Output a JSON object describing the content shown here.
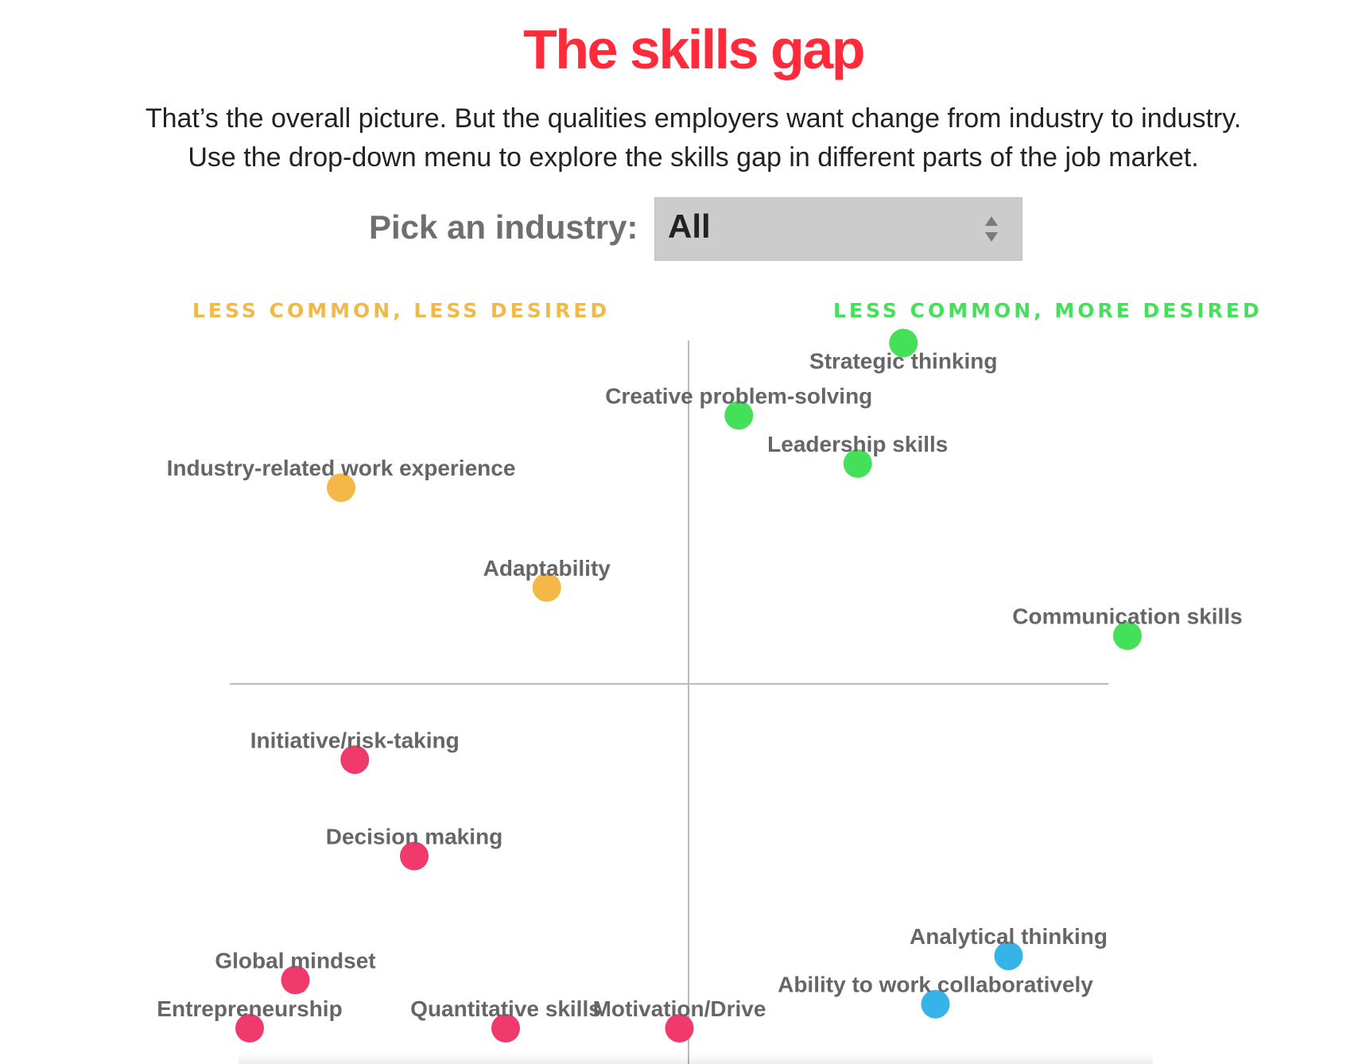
{
  "title": "The skills gap",
  "intro": {
    "line1": "That’s the overall picture. But the qualities employers want change from industry to industry.",
    "line2": "Use the drop-down menu to explore the skills gap in different parts of the job market."
  },
  "picker": {
    "label": "Pick an industry:",
    "value": "All"
  },
  "quadrant_labels": {
    "top_left": "LESS COMMON, LESS DESIRED",
    "top_right": "LESS COMMON, MORE DESIRED"
  },
  "colors": {
    "title": "#ff2a3a",
    "top_left": "#f3b847",
    "top_right": "#45e05a",
    "bottom_left": "#f13a6c",
    "bottom_right": "#35b4ea",
    "axis": "#bbbbbb",
    "point_label": "#666666"
  },
  "chart_data": {
    "type": "scatter",
    "x_range": [
      -1,
      1
    ],
    "y_range": [
      -1,
      1
    ],
    "axes": "crosshair",
    "grid": false,
    "legend": "none",
    "points": [
      {
        "label": "Strategic thinking",
        "x": 0.47,
        "y": 0.99,
        "group": "top_right",
        "label_position": "below"
      },
      {
        "label": "Creative problem-solving",
        "x": 0.11,
        "y": 0.78,
        "group": "top_right",
        "label_position": "above"
      },
      {
        "label": "Leadership skills",
        "x": 0.37,
        "y": 0.64,
        "group": "top_right",
        "label_position": "above"
      },
      {
        "label": "Communication skills",
        "x": 0.96,
        "y": 0.14,
        "group": "top_right",
        "label_position": "above"
      },
      {
        "label": "Industry-related work experience",
        "x": -0.76,
        "y": 0.57,
        "group": "top_left",
        "label_position": "above"
      },
      {
        "label": "Adaptability",
        "x": -0.31,
        "y": 0.28,
        "group": "top_left",
        "label_position": "above"
      },
      {
        "label": "Initiative/risk-taking",
        "x": -0.73,
        "y": -0.22,
        "group": "bottom_left",
        "label_position": "above"
      },
      {
        "label": "Decision making",
        "x": -0.6,
        "y": -0.5,
        "group": "bottom_left",
        "label_position": "above"
      },
      {
        "label": "Global mindset",
        "x": -0.86,
        "y": -0.86,
        "group": "bottom_left",
        "label_position": "above"
      },
      {
        "label": "Entrepreneurship",
        "x": -0.96,
        "y": -1.0,
        "group": "bottom_left",
        "label_position": "above"
      },
      {
        "label": "Quantitative skills",
        "x": -0.4,
        "y": -1.0,
        "group": "bottom_left",
        "label_position": "above"
      },
      {
        "label": "Motivation/Drive",
        "x": -0.02,
        "y": -1.0,
        "group": "bottom_left",
        "label_position": "above"
      },
      {
        "label": "Analytical thinking",
        "x": 0.7,
        "y": -0.79,
        "group": "bottom_right",
        "label_position": "above"
      },
      {
        "label": "Ability to work collaboratively",
        "x": 0.54,
        "y": -0.93,
        "group": "bottom_right",
        "label_position": "above"
      }
    ]
  }
}
